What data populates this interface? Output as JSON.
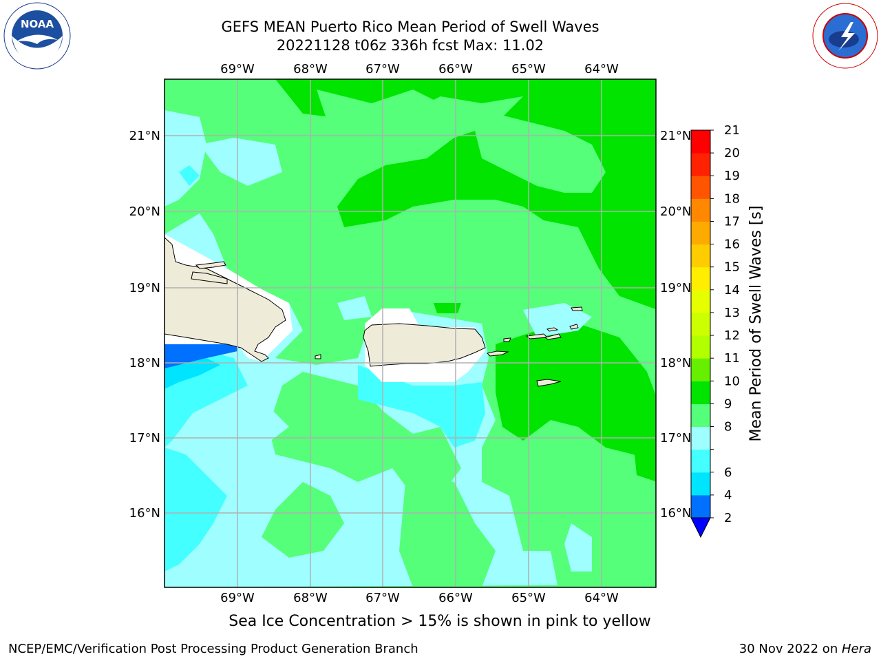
{
  "title_line1": "GEFS MEAN Puerto Rico Mean Period of Swell Waves",
  "title_line2": "20221128 t06z 336h fcst   Max: 11.02",
  "footer_left": "NCEP/EMC/Verification Post Processing Product Generation Branch",
  "footer_date": "30 Nov 2022 on ",
  "footer_host": "Hera",
  "sea_ice_note": "Sea Ice Concentration > 15% is shown in pink to yellow",
  "logos": {
    "left": "NOAA",
    "right": "NATIONAL WEATHER SERVICE"
  },
  "map": {
    "lon_labels": [
      "69°W",
      "68°W",
      "67°W",
      "66°W",
      "65°W",
      "64°W"
    ],
    "lat_labels": [
      "21°N",
      "20°N",
      "19°N",
      "18°N",
      "17°N",
      "16°N"
    ],
    "colors": {
      "ocean_bg": "#55ff7a",
      "land": "#eeebd9",
      "grid": "#b0b0b0"
    }
  },
  "colorbar": {
    "label": "Mean Period of Swell Waves [s]",
    "ticks": [
      "2",
      "4",
      "6",
      "7",
      "8",
      "9",
      "10",
      "11",
      "12",
      "13",
      "14",
      "15",
      "16",
      "17",
      "18",
      "19",
      "20",
      "21"
    ],
    "tick_labels_printed": [
      "2",
      "4",
      "6",
      "8",
      "9",
      "10",
      "11",
      "12",
      "13",
      "14",
      "15",
      "16",
      "17",
      "18",
      "19",
      "20",
      "21"
    ],
    "colors": [
      "#0000ff",
      "#0070ff",
      "#00e5ff",
      "#44ffff",
      "#9ffeff",
      "#55ff7a",
      "#00e400",
      "#66f000",
      "#b2ff00",
      "#ccff00",
      "#e5ff00",
      "#ffee00",
      "#ffcc00",
      "#ffaa00",
      "#ff8800",
      "#ff5500",
      "#ff2200",
      "#ff0000"
    ]
  }
}
